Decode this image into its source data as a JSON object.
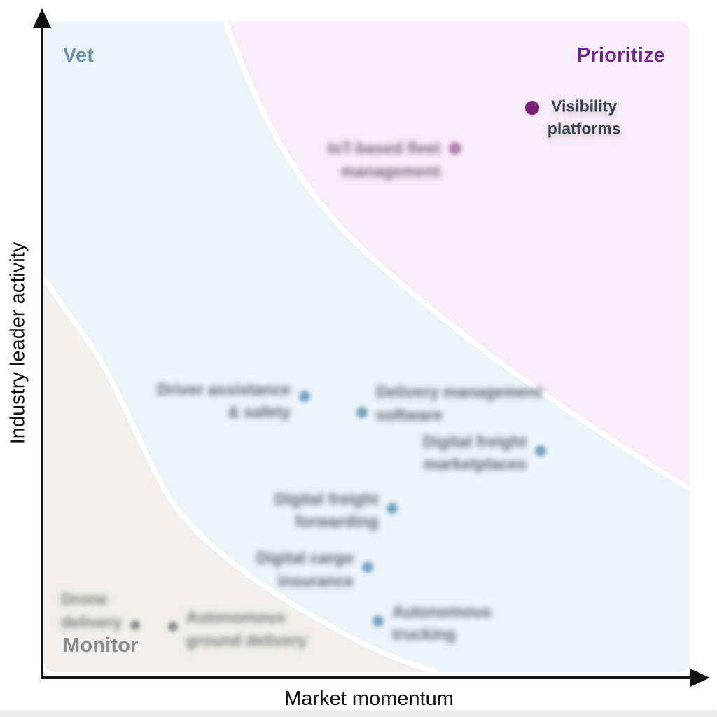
{
  "figure": {
    "x_axis_label": "Market momentum",
    "y_axis_label": "Industry leader activity"
  },
  "zones": {
    "vet": {
      "label": "Vet",
      "text_color": "#6b94ae",
      "bg": "#ecf4f7"
    },
    "prioritize": {
      "label": "Prioritize",
      "text_color": "#76208f",
      "bg": "#f8edf6"
    },
    "monitor": {
      "label": "Monitor",
      "text_color": "#8c8c8c",
      "bg": "#f0efed"
    },
    "separator": "#ffffff"
  },
  "chart_data": {
    "type": "scatter",
    "title": "",
    "xlabel": "Market momentum",
    "ylabel": "Industry leader activity",
    "axis_style": "qualitative arrows, no ticks, no gridlines",
    "x_range": [
      "low",
      "high"
    ],
    "y_range": [
      "low",
      "high"
    ],
    "legend": "none",
    "zones_layout": "three curved bands: Monitor (bottom-left, gray), Vet (middle, light blue), Prioritize (top-right, pink), separated by white curves",
    "points": [
      {
        "id": "visibility-platforms",
        "label_lines": [
          "Visibility",
          "platforms"
        ],
        "zone": "Prioritize",
        "x_pct": 75.6,
        "y_pct": 13.3,
        "dot_r": 10,
        "dot_color": "#7c1f79",
        "label_color": "#37434c",
        "side": "right",
        "align": "center",
        "shift_pct": -28,
        "blurred": false
      },
      {
        "id": "iot-based-fleet-management",
        "label_lines": [
          "IoT-based fleet",
          "management"
        ],
        "zone": "Prioritize",
        "x_pct": 63.7,
        "y_pct": 19.6,
        "dot_r": 9,
        "dot_color": "#af7fab",
        "label_color": "#6f6a73",
        "side": "left",
        "align": "right",
        "shift_pct": -25,
        "blurred": true
      },
      {
        "id": "driver-assistance-safety",
        "label_lines": [
          "Driver assistance",
          "& safety"
        ],
        "zone": "Vet",
        "x_pct": 40.4,
        "y_pct": 57.6,
        "dot_r": 8,
        "dot_color": "#76a3c2",
        "label_color": "#5d6770",
        "side": "left",
        "align": "right",
        "shift_pct": -40,
        "blurred": true
      },
      {
        "id": "delivery-management-software",
        "label_lines": [
          "Delivery management",
          "software"
        ],
        "zone": "Vet",
        "x_pct": 49.3,
        "y_pct": 60.1,
        "dot_r": 8,
        "dot_color": "#76a3c2",
        "label_color": "#5d6770",
        "side": "right",
        "align": "left",
        "shift_pct": -70,
        "blurred": true
      },
      {
        "id": "digital-freight-marketplaces",
        "label_lines": [
          "Digital freight",
          "marketplaces"
        ],
        "zone": "Vet",
        "x_pct": 76.9,
        "y_pct": 66.0,
        "dot_r": 8,
        "dot_color": "#76a3c2",
        "label_color": "#5d6770",
        "side": "left",
        "align": "right",
        "shift_pct": -45,
        "blurred": true
      },
      {
        "id": "digital-freight-forwarding",
        "label_lines": [
          "Digital freight",
          "forwarding"
        ],
        "zone": "Vet",
        "x_pct": 54.0,
        "y_pct": 74.8,
        "dot_r": 8,
        "dot_color": "#76a3c2",
        "label_color": "#5d6770",
        "side": "left",
        "align": "right",
        "shift_pct": -45,
        "blurred": true
      },
      {
        "id": "digital-cargo-insurance",
        "label_lines": [
          "Digital cargo",
          "insurance"
        ],
        "zone": "Vet",
        "x_pct": 50.2,
        "y_pct": 83.9,
        "dot_r": 8,
        "dot_color": "#76a3c2",
        "label_color": "#5d6770",
        "side": "left",
        "align": "right",
        "shift_pct": -45,
        "blurred": true
      },
      {
        "id": "drone-delivery",
        "label_lines": [
          "Drone",
          "delivery"
        ],
        "zone": "Monitor",
        "x_pct": 14.2,
        "y_pct": 92.8,
        "dot_r": 7,
        "dot_color": "#909090",
        "label_color": "#7a7a7a",
        "side": "left",
        "align": "left",
        "shift_pct": -82,
        "blurred": true
      },
      {
        "id": "autonomous-ground-delivery",
        "label_lines": [
          "Autonomous",
          "ground delivery"
        ],
        "zone": "Monitor",
        "x_pct": 20.0,
        "y_pct": 93.0,
        "dot_r": 7,
        "dot_color": "#909090",
        "label_color": "#7a7a7a",
        "side": "right",
        "align": "left",
        "shift_pct": -45,
        "blurred": true
      },
      {
        "id": "autonomous-trucking",
        "label_lines": [
          "Autonomous",
          "trucking"
        ],
        "zone": "Vet",
        "x_pct": 51.8,
        "y_pct": 92.1,
        "dot_r": 8,
        "dot_color": "#76a3c2",
        "label_color": "#5d6770",
        "side": "right",
        "align": "left",
        "shift_pct": -45,
        "blurred": true
      }
    ]
  }
}
